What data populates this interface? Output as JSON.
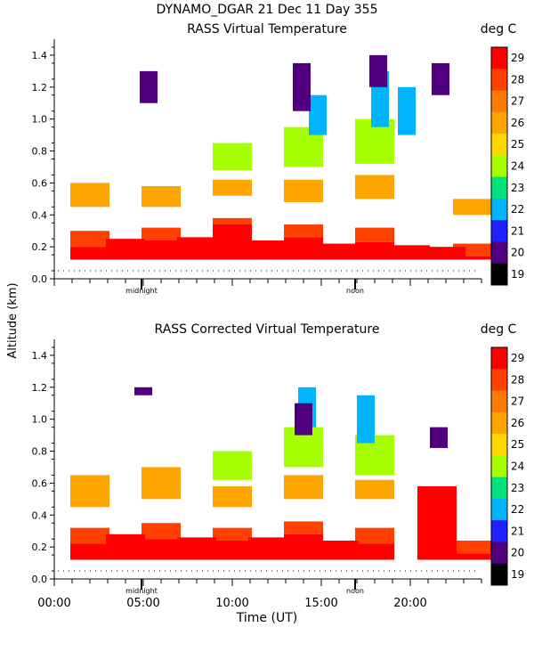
{
  "header": {
    "title": "DYNAMO_DGAR  21 Dec 11 Day 355"
  },
  "shared": {
    "ylabel": "Altitude (km)",
    "xlabel": "Time (UT)",
    "x_ticks": [
      "00:00",
      "05:00",
      "10:00",
      "15:00",
      "20:00"
    ],
    "x_tick_values": [
      0,
      5,
      10,
      15,
      20
    ],
    "markers": [
      {
        "label": "midnight",
        "x": 4.9
      },
      {
        "label": "noon",
        "x": 16.9
      }
    ],
    "y_ticks": [
      "0.0",
      "0.2",
      "0.4",
      "0.6",
      "0.8",
      "1.0",
      "1.2",
      "1.4"
    ],
    "xlim": [
      0,
      24
    ],
    "ylim": [
      0,
      1.5
    ],
    "colorbar_unit": "deg C",
    "colorbar_levels": [
      29,
      28,
      27,
      26,
      25,
      24,
      23,
      22,
      21,
      20,
      19
    ],
    "colorbar_colors": [
      "#ff0000",
      "#ff4000",
      "#ff7a00",
      "#ffa500",
      "#ffd700",
      "#a6ff00",
      "#00e27a",
      "#00b4ff",
      "#2020ff",
      "#50007f",
      "#000000"
    ]
  },
  "chart_data": [
    {
      "type": "heatmap",
      "title": "RASS Virtual Temperature",
      "xlabel": "",
      "ylabel": "Altitude (km)",
      "xlim": [
        0,
        24
      ],
      "ylim": [
        0,
        1.5
      ],
      "series": [
        {
          "name": "29",
          "values": [
            [
              2.0,
              0.12,
              0.2
            ],
            [
              4.0,
              0.12,
              0.25
            ],
            [
              6.0,
              0.12,
              0.24
            ],
            [
              8.0,
              0.12,
              0.26
            ],
            [
              10.0,
              0.12,
              0.34
            ],
            [
              12.0,
              0.12,
              0.24
            ],
            [
              14.0,
              0.12,
              0.26
            ],
            [
              16.0,
              0.12,
              0.22
            ],
            [
              18.0,
              0.12,
              0.23
            ],
            [
              20.0,
              0.12,
              0.21
            ],
            [
              22.0,
              0.12,
              0.2
            ],
            [
              23.5,
              0.12,
              0.14
            ]
          ]
        },
        {
          "name": "28",
          "values": [
            [
              2.0,
              0.2,
              0.3
            ],
            [
              6.0,
              0.24,
              0.32
            ],
            [
              10.0,
              0.34,
              0.38
            ],
            [
              14.0,
              0.26,
              0.34
            ],
            [
              18.0,
              0.23,
              0.32
            ],
            [
              23.5,
              0.14,
              0.22
            ]
          ]
        },
        {
          "name": "26",
          "values": [
            [
              2.0,
              0.45,
              0.6
            ],
            [
              6.0,
              0.45,
              0.58
            ],
            [
              10.0,
              0.52,
              0.62
            ],
            [
              14.0,
              0.48,
              0.62
            ],
            [
              18.0,
              0.5,
              0.65
            ],
            [
              23.5,
              0.4,
              0.5
            ]
          ]
        },
        {
          "name": "24",
          "values": [
            [
              10.0,
              0.68,
              0.85
            ],
            [
              14.0,
              0.7,
              0.95
            ],
            [
              18.0,
              0.72,
              1.0
            ]
          ]
        },
        {
          "name": "22",
          "values": [
            [
              14.8,
              0.9,
              1.15
            ],
            [
              18.3,
              0.95,
              1.3
            ],
            [
              19.8,
              0.9,
              1.2
            ]
          ]
        },
        {
          "name": "20",
          "values": [
            [
              13.9,
              1.05,
              1.35
            ],
            [
              18.2,
              1.2,
              1.4
            ],
            [
              21.7,
              1.15,
              1.35
            ],
            [
              5.3,
              1.1,
              1.3
            ]
          ]
        }
      ]
    },
    {
      "type": "heatmap",
      "title": "RASS Corrected Virtual Temperature",
      "xlabel": "Time (UT)",
      "ylabel": "Altitude (km)",
      "xlim": [
        0,
        24
      ],
      "ylim": [
        0,
        1.5
      ],
      "series": [
        {
          "name": "29",
          "values": [
            [
              2.0,
              0.12,
              0.22
            ],
            [
              4.0,
              0.12,
              0.28
            ],
            [
              6.0,
              0.12,
              0.25
            ],
            [
              8.0,
              0.12,
              0.26
            ],
            [
              10.0,
              0.12,
              0.24
            ],
            [
              12.0,
              0.12,
              0.26
            ],
            [
              14.0,
              0.12,
              0.28
            ],
            [
              16.0,
              0.12,
              0.24
            ],
            [
              18.0,
              0.12,
              0.22
            ],
            [
              21.5,
              0.12,
              0.58
            ],
            [
              23.5,
              0.12,
              0.16
            ]
          ]
        },
        {
          "name": "28",
          "values": [
            [
              2.0,
              0.22,
              0.32
            ],
            [
              6.0,
              0.25,
              0.35
            ],
            [
              10.0,
              0.24,
              0.32
            ],
            [
              14.0,
              0.28,
              0.36
            ],
            [
              18.0,
              0.22,
              0.32
            ],
            [
              23.5,
              0.16,
              0.24
            ]
          ]
        },
        {
          "name": "26",
          "values": [
            [
              2.0,
              0.45,
              0.65
            ],
            [
              6.0,
              0.5,
              0.7
            ],
            [
              10.0,
              0.45,
              0.58
            ],
            [
              14.0,
              0.5,
              0.65
            ],
            [
              18.0,
              0.5,
              0.62
            ]
          ]
        },
        {
          "name": "24",
          "values": [
            [
              10.0,
              0.62,
              0.8
            ],
            [
              14.0,
              0.7,
              0.95
            ],
            [
              18.0,
              0.65,
              0.9
            ]
          ]
        },
        {
          "name": "22",
          "values": [
            [
              14.2,
              0.95,
              1.2
            ],
            [
              17.5,
              0.85,
              1.15
            ]
          ]
        },
        {
          "name": "20",
          "values": [
            [
              14.0,
              0.9,
              1.1
            ],
            [
              21.6,
              0.82,
              0.95
            ],
            [
              5.0,
              1.15,
              1.2
            ]
          ]
        }
      ]
    }
  ]
}
